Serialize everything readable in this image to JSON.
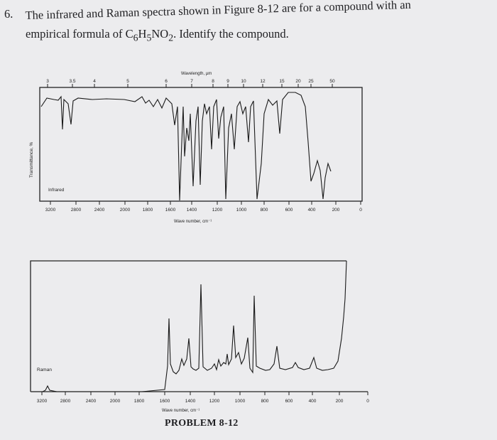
{
  "problem": {
    "number": "6.",
    "line1": "The infrared and Raman spectra shown in Figure 8-12 are for a compound with an",
    "line2_prefix": "empirical formula of C",
    "formula_sub1": "6",
    "formula_mid1": "H",
    "formula_sub2": "5",
    "formula_mid2": "NO",
    "formula_sub3": "2",
    "line2_suffix": ".  Identify the compound."
  },
  "ir": {
    "label": "Infrared",
    "y_axis_label": "Transmittance, %",
    "top_axis_title": "Wavelength, µm",
    "top_ticks": [
      "3",
      "3.5",
      "4",
      "5",
      "6",
      "7",
      "8",
      "9",
      "10",
      "12",
      "15",
      "20",
      "25",
      "50"
    ],
    "bottom_ticks": [
      "3200",
      "2800",
      "2400",
      "2000",
      "1800",
      "1600",
      "1400",
      "1200",
      "1000",
      "800",
      "600",
      "400",
      "200",
      "0"
    ],
    "x_axis_title": "Wave number, cm⁻¹"
  },
  "raman": {
    "label": "Raman",
    "bottom_ticks": [
      "3200",
      "2800",
      "2400",
      "2000",
      "1800",
      "1600",
      "1400",
      "1200",
      "1000",
      "800",
      "600",
      "400",
      "200",
      "0"
    ],
    "x_axis_title": "Wave number, cm⁻¹"
  },
  "caption": "PROBLEM 8-12"
}
